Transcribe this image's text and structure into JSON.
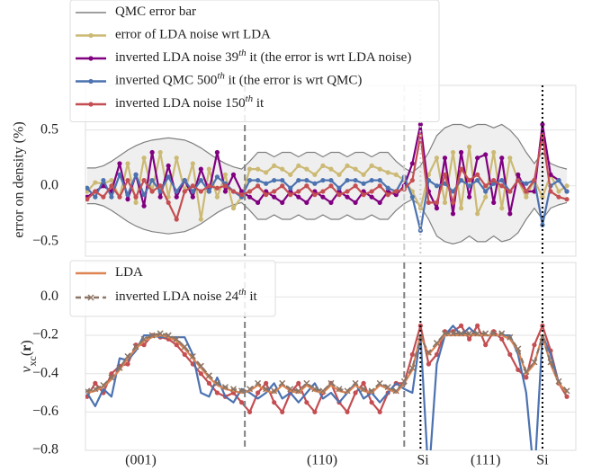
{
  "chart_data": [
    {
      "type": "line",
      "ylabel": "error on density (%)",
      "x": [
        0,
        1,
        2,
        3,
        4,
        5,
        6,
        7,
        8,
        9,
        10,
        11,
        12,
        13,
        14,
        15,
        16,
        17,
        18,
        19,
        20,
        21,
        22,
        23,
        24,
        25,
        26,
        27,
        28,
        29,
        30,
        31,
        32,
        33,
        34,
        35,
        36,
        37,
        38,
        39,
        40,
        41,
        42,
        43,
        44,
        45,
        46,
        47,
        48,
        49,
        50,
        51,
        52,
        53,
        54,
        55,
        56,
        57,
        58,
        59
      ],
      "xlim": [
        -0.2,
        60.1
      ],
      "ylim": [
        -0.63,
        0.9
      ],
      "yticks": [
        {
          "value": -0.5,
          "label": "−0.5"
        },
        {
          "value": 0,
          "label": "0.0"
        },
        {
          "value": 0.5,
          "label": "0.5"
        }
      ],
      "grid": true,
      "band": {
        "name": "QMC error bar",
        "color": "#808080",
        "fill": "#efefef",
        "upper": [
          0.16,
          0.16,
          0.18,
          0.22,
          0.27,
          0.32,
          0.36,
          0.39,
          0.41,
          0.42,
          0.43,
          0.42,
          0.41,
          0.38,
          0.34,
          0.29,
          0.24,
          0.2,
          0.17,
          0.15,
          0.22,
          0.3,
          0.3,
          0.26,
          0.3,
          0.3,
          0.26,
          0.3,
          0.3,
          0.26,
          0.3,
          0.3,
          0.26,
          0.3,
          0.3,
          0.26,
          0.3,
          0.3,
          0.22,
          0.16,
          0.12,
          0.18,
          0.3,
          0.45,
          0.52,
          0.55,
          0.55,
          0.52,
          0.55,
          0.55,
          0.52,
          0.55,
          0.5,
          0.42,
          0.3,
          0.2,
          0.3,
          0.2,
          0.17,
          0.15
        ],
        "lower": [
          -0.16,
          -0.16,
          -0.18,
          -0.22,
          -0.27,
          -0.32,
          -0.36,
          -0.39,
          -0.41,
          -0.42,
          -0.43,
          -0.42,
          -0.41,
          -0.38,
          -0.34,
          -0.29,
          -0.24,
          -0.2,
          -0.17,
          -0.15,
          -0.22,
          -0.3,
          -0.3,
          -0.26,
          -0.3,
          -0.3,
          -0.26,
          -0.3,
          -0.3,
          -0.26,
          -0.3,
          -0.3,
          -0.26,
          -0.3,
          -0.3,
          -0.26,
          -0.3,
          -0.3,
          -0.22,
          -0.16,
          -0.12,
          -0.18,
          -0.3,
          -0.45,
          -0.5,
          -0.52,
          -0.5,
          -0.45,
          -0.5,
          -0.5,
          -0.45,
          -0.5,
          -0.48,
          -0.42,
          -0.3,
          -0.2,
          -0.3,
          -0.2,
          -0.17,
          -0.15
        ]
      },
      "series": [
        {
          "name": "error of LDA noise wrt LDA",
          "color": "#ccb974",
          "marker": "o",
          "values": [
            -0.05,
            0.03,
            0.02,
            0.05,
            -0.1,
            0.2,
            -0.15,
            0.25,
            -0.05,
            0.3,
            -0.1,
            0.25,
            -0.05,
            0.2,
            -0.3,
            0.15,
            -0.1,
            0.1,
            -0.2,
            -0.1,
            0.15,
            0.15,
            0.12,
            0.18,
            0.15,
            0.1,
            0.18,
            0.15,
            0.1,
            0.18,
            0.15,
            0.1,
            0.18,
            0.15,
            0.1,
            0.18,
            0.15,
            0.12,
            0.1,
            0.05,
            -0.05,
            -0.2,
            0.1,
            0.25,
            -0.15,
            0.3,
            -0.2,
            0.35,
            -0.25,
            -0.1,
            0.3,
            -0.2,
            0.25,
            0.05,
            -0.1,
            0.05,
            -0.1,
            0.1,
            -0.05,
            0.0
          ]
        },
        {
          "name": "inverted LDA noise 39th it (the error is wrt LDA noise)",
          "color": "#800080",
          "marker": "o",
          "values": [
            -0.1,
            -0.05,
            0.0,
            -0.05,
            0.2,
            -0.12,
            0.1,
            -0.18,
            0.3,
            -0.1,
            0.18,
            -0.1,
            0.05,
            -0.1,
            0.15,
            -0.05,
            0.3,
            -0.05,
            0.1,
            -0.05,
            -0.1,
            -0.15,
            -0.05,
            -0.1,
            -0.15,
            -0.05,
            -0.1,
            -0.15,
            -0.05,
            -0.1,
            -0.15,
            -0.05,
            -0.1,
            -0.15,
            -0.05,
            -0.1,
            -0.15,
            -0.05,
            -0.08,
            0.0,
            0.2,
            0.55,
            -0.05,
            -0.2,
            0.25,
            -0.25,
            0.3,
            -0.1,
            0.25,
            0.28,
            -0.15,
            0.25,
            -0.25,
            0.1,
            -0.05,
            -0.05,
            0.55,
            0.1,
            0.05,
            -0.05
          ]
        },
        {
          "name": "inverted QMC 500th it (the error is wrt QMC)",
          "color": "#4c72b0",
          "marker": "o",
          "values": [
            -0.02,
            -0.1,
            0.05,
            -0.1,
            0.1,
            -0.08,
            0.1,
            -0.08,
            0.05,
            -0.05,
            0.08,
            -0.05,
            0.05,
            -0.05,
            0.05,
            -0.05,
            0.08,
            0.02,
            -0.05,
            -0.1,
            0.05,
            0.05,
            0.02,
            0.05,
            0.05,
            -0.02,
            0.05,
            0.05,
            0.02,
            0.05,
            0.05,
            -0.02,
            0.05,
            0.05,
            0.02,
            0.05,
            0.05,
            -0.02,
            -0.05,
            0.08,
            -0.1,
            -0.4,
            0.05,
            0.0,
            0.02,
            -0.05,
            0.05,
            0.0,
            0.05,
            -0.05,
            0.02,
            0.05,
            -0.05,
            0.05,
            0.02,
            0.05,
            -0.35,
            0.0,
            0.05,
            -0.05
          ]
        },
        {
          "name": "inverted LDA noise 150th it",
          "color": "#c44e52",
          "marker": "o",
          "values": [
            -0.12,
            -0.05,
            -0.1,
            0.0,
            -0.1,
            0.05,
            -0.1,
            0.05,
            -0.05,
            0.0,
            -0.15,
            -0.3,
            -0.05,
            0.0,
            -0.05,
            0.0,
            -0.02,
            0.0,
            -0.05,
            -0.08,
            -0.05,
            0.0,
            -0.08,
            -0.05,
            0.0,
            -0.08,
            -0.05,
            0.0,
            -0.08,
            -0.05,
            0.0,
            -0.08,
            -0.05,
            0.0,
            -0.08,
            -0.05,
            0.0,
            -0.08,
            -0.05,
            -0.03,
            0.05,
            0.45,
            -0.15,
            -0.15,
            0.1,
            -0.15,
            0.15,
            0.05,
            0.1,
            0.0,
            0.05,
            0.0,
            -0.05,
            0.05,
            -0.05,
            0.05,
            0.45,
            -0.05,
            -0.1,
            -0.12
          ]
        }
      ],
      "vlines": [
        {
          "x": 19.4,
          "color": "#808080",
          "dash": "7,4"
        },
        {
          "x": 39.0,
          "color": "#cccccc",
          "dash": "7,4"
        },
        {
          "x": 41,
          "color": "#cccccc",
          "dash": "2,3"
        },
        {
          "x": 56,
          "color": "#000000",
          "dash": "2,3"
        }
      ]
    },
    {
      "type": "line",
      "ylabel": "vxc(r)",
      "x": [
        0,
        1,
        2,
        3,
        4,
        5,
        6,
        7,
        8,
        9,
        10,
        11,
        12,
        13,
        14,
        15,
        16,
        17,
        18,
        19,
        20,
        21,
        22,
        23,
        24,
        25,
        26,
        27,
        28,
        29,
        30,
        31,
        32,
        33,
        34,
        35,
        36,
        37,
        38,
        39,
        40,
        41,
        42,
        43,
        44,
        45,
        46,
        47,
        48,
        49,
        50,
        51,
        52,
        53,
        54,
        55,
        56,
        57,
        58,
        59
      ],
      "xlim": [
        -0.2,
        60.1
      ],
      "ylim": [
        -0.8,
        0.18
      ],
      "yticks": [
        {
          "value": -0.8,
          "label": "−0.8"
        },
        {
          "value": -0.6,
          "label": "−0.6"
        },
        {
          "value": -0.4,
          "label": "−0.4"
        },
        {
          "value": -0.2,
          "label": "−0.2"
        },
        {
          "value": 0,
          "label": "0.0"
        }
      ],
      "xticks": [
        {
          "value": 6.6,
          "label": "(001)"
        },
        {
          "value": 28.9,
          "label": "(110)"
        },
        {
          "value": 41.3,
          "label": "Si"
        },
        {
          "value": 49,
          "label": "(111)"
        },
        {
          "value": 56,
          "label": "Si"
        }
      ],
      "grid": true,
      "series": [
        {
          "color": "#c44e52",
          "marker": "o",
          "values": [
            -0.52,
            -0.45,
            -0.5,
            -0.4,
            -0.36,
            -0.35,
            -0.25,
            -0.25,
            -0.2,
            -0.21,
            -0.22,
            -0.25,
            -0.3,
            -0.35,
            -0.4,
            -0.45,
            -0.5,
            -0.52,
            -0.5,
            -0.55,
            -0.6,
            -0.5,
            -0.45,
            -0.55,
            -0.6,
            -0.5,
            -0.45,
            -0.55,
            -0.6,
            -0.5,
            -0.45,
            -0.55,
            -0.6,
            -0.5,
            -0.45,
            -0.55,
            -0.6,
            -0.5,
            -0.45,
            -0.45,
            -0.3,
            -0.15,
            -0.35,
            -0.3,
            -0.18,
            -0.18,
            -0.15,
            -0.22,
            -0.15,
            -0.25,
            -0.18,
            -0.22,
            -0.3,
            -0.38,
            -0.42,
            -0.25,
            -0.15,
            -0.28,
            -0.45,
            -0.52
          ]
        },
        {
          "color": "#4c72b0",
          "marker": "none",
          "values": [
            -0.5,
            -0.57,
            -0.48,
            -0.52,
            -0.32,
            -0.33,
            -0.28,
            -0.2,
            -0.2,
            -0.21,
            -0.21,
            -0.21,
            -0.21,
            -0.3,
            -0.5,
            -0.52,
            -0.42,
            -0.52,
            -0.55,
            -0.48,
            -0.5,
            -0.53,
            -0.5,
            -0.45,
            -0.53,
            -0.5,
            -0.55,
            -0.5,
            -0.45,
            -0.53,
            -0.5,
            -0.55,
            -0.5,
            -0.45,
            -0.53,
            -0.5,
            -0.55,
            -0.5,
            -0.45,
            -0.48,
            -0.5,
            -0.2,
            -0.95,
            -0.35,
            -0.2,
            -0.15,
            -0.2,
            -0.16,
            -0.2,
            -0.2,
            -0.2,
            -0.2,
            -0.2,
            -0.3,
            -0.5,
            -0.95,
            -0.2,
            -0.3,
            -0.45,
            -0.5
          ]
        },
        {
          "name": "LDA",
          "color": "#dd8452",
          "marker": "none",
          "values": [
            -0.5,
            -0.49,
            -0.47,
            -0.43,
            -0.38,
            -0.32,
            -0.27,
            -0.23,
            -0.21,
            -0.2,
            -0.21,
            -0.23,
            -0.27,
            -0.32,
            -0.37,
            -0.42,
            -0.46,
            -0.48,
            -0.49,
            -0.5,
            -0.49,
            -0.46,
            -0.49,
            -0.5,
            -0.46,
            -0.49,
            -0.5,
            -0.46,
            -0.49,
            -0.5,
            -0.46,
            -0.49,
            -0.5,
            -0.46,
            -0.49,
            -0.5,
            -0.46,
            -0.48,
            -0.5,
            -0.45,
            -0.38,
            -0.2,
            -0.3,
            -0.25,
            -0.2,
            -0.2,
            -0.2,
            -0.2,
            -0.2,
            -0.2,
            -0.2,
            -0.2,
            -0.22,
            -0.28,
            -0.4,
            -0.35,
            -0.2,
            -0.35,
            -0.45,
            -0.5
          ]
        },
        {
          "name": "inverted LDA noise 24th it",
          "color": "#8c7565",
          "marker": "x",
          "dash": "6,4",
          "values": [
            -0.49,
            -0.48,
            -0.46,
            -0.42,
            -0.37,
            -0.31,
            -0.26,
            -0.22,
            -0.2,
            -0.19,
            -0.2,
            -0.22,
            -0.26,
            -0.31,
            -0.36,
            -0.41,
            -0.45,
            -0.47,
            -0.48,
            -0.49,
            -0.48,
            -0.45,
            -0.48,
            -0.49,
            -0.45,
            -0.48,
            -0.49,
            -0.45,
            -0.48,
            -0.49,
            -0.45,
            -0.48,
            -0.49,
            -0.45,
            -0.48,
            -0.49,
            -0.45,
            -0.47,
            -0.49,
            -0.44,
            -0.37,
            -0.21,
            -0.29,
            -0.24,
            -0.19,
            -0.19,
            -0.19,
            -0.19,
            -0.19,
            -0.19,
            -0.19,
            -0.19,
            -0.21,
            -0.27,
            -0.39,
            -0.34,
            -0.21,
            -0.34,
            -0.44,
            -0.49
          ]
        }
      ],
      "vlines": [
        {
          "x": 19.4,
          "color": "#808080",
          "dash": "7,4"
        },
        {
          "x": 39.0,
          "color": "#808080",
          "dash": "7,4"
        },
        {
          "x": 41,
          "color": "#000000",
          "dash": "2,3"
        },
        {
          "x": 56,
          "color": "#000000",
          "dash": "2,3"
        }
      ]
    }
  ]
}
